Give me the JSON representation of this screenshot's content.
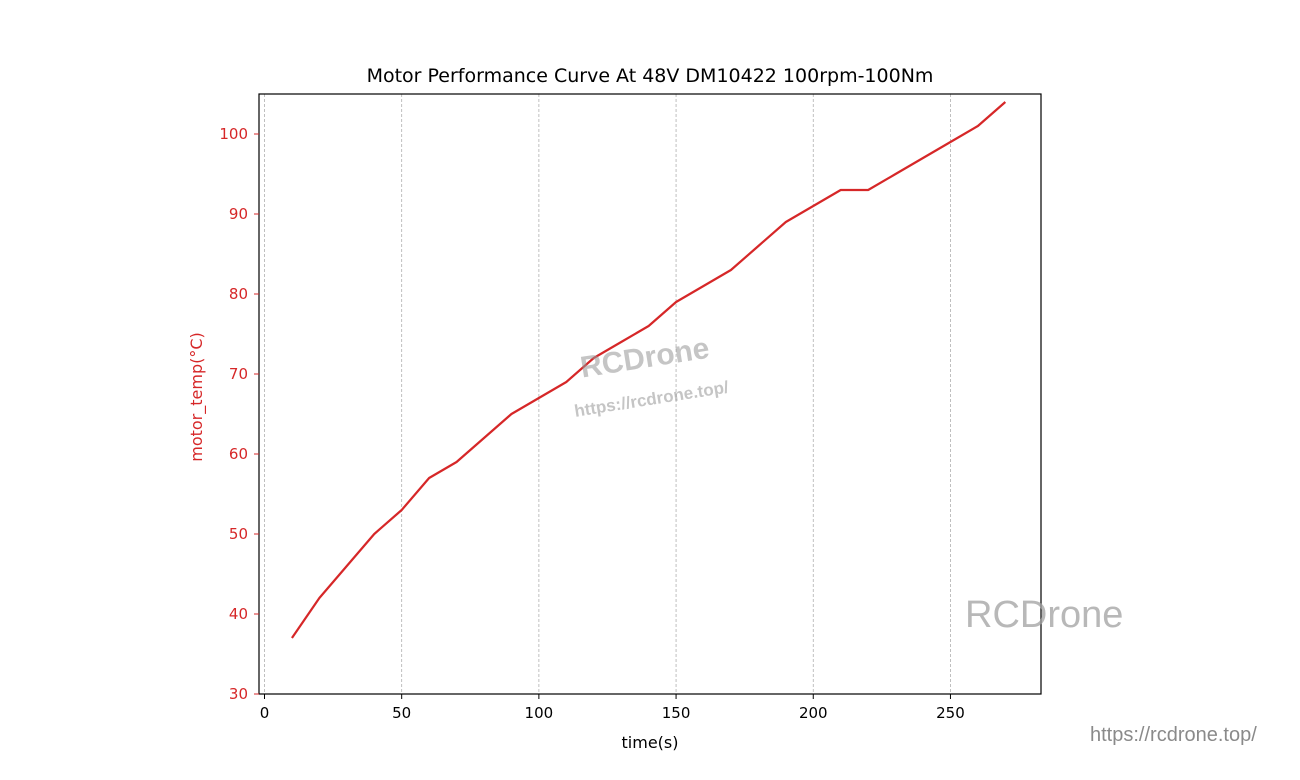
{
  "chart_data": {
    "type": "line",
    "title": "Motor Performance Curve At 48V DM10422 100rpm-100Nm",
    "xlabel": "time(s)",
    "ylabel": "motor_temp(°C)",
    "xlim": [
      -2,
      283
    ],
    "ylim": [
      30,
      105
    ],
    "xticks": [
      0,
      50,
      100,
      150,
      200,
      250
    ],
    "yticks": [
      30,
      40,
      50,
      60,
      70,
      80,
      90,
      100
    ],
    "grid": {
      "x": true,
      "y": false,
      "style": "dashed"
    },
    "series": [
      {
        "color": "#d62728",
        "x": [
          10,
          20,
          30,
          40,
          50,
          60,
          70,
          80,
          90,
          100,
          110,
          120,
          130,
          140,
          150,
          160,
          170,
          180,
          190,
          200,
          210,
          220,
          230,
          240,
          250,
          260,
          270
        ],
        "y": [
          37,
          42,
          46,
          50,
          53,
          57,
          59,
          62,
          65,
          67,
          69,
          72,
          74,
          76,
          79,
          81,
          83,
          86,
          89,
          91,
          93,
          93,
          95,
          97,
          99,
          101,
          104
        ]
      }
    ],
    "ylabel_color": "#d62728"
  },
  "watermarks": {
    "center_brand": "RCDrone",
    "center_url": "https://rcdrone.top/",
    "corner_brand": "RCDrone",
    "corner_url": "https://rcdrone.top/"
  }
}
